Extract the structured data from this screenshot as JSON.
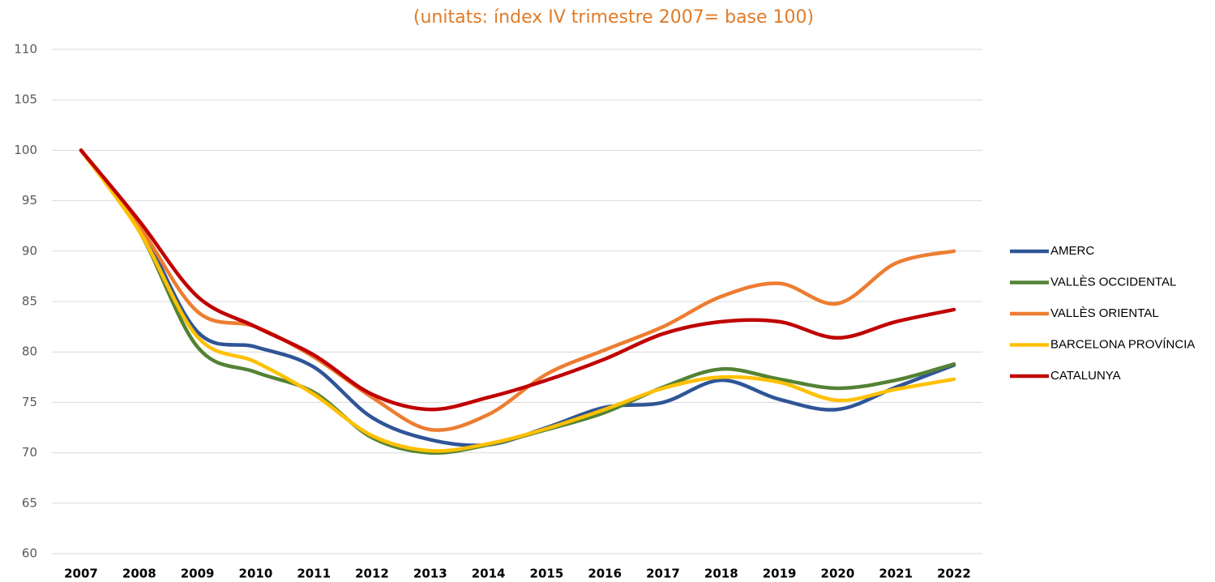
{
  "chart_data": {
    "type": "line",
    "title": "(unitats: índex IV trimestre 2007= base 100)",
    "categories": [
      "2007",
      "2008",
      "2009",
      "2010",
      "2011",
      "2012",
      "2013",
      "2014",
      "2015",
      "2016",
      "2017",
      "2018",
      "2019",
      "2020",
      "2021",
      "2022"
    ],
    "series": [
      {
        "name": "AMERC",
        "color": "#2f5597",
        "values": [
          100,
          92.5,
          82,
          80.5,
          78.5,
          73.5,
          71.3,
          70.8,
          72.5,
          74.5,
          75,
          77.2,
          75.3,
          74.3,
          76.5,
          78.7
        ]
      },
      {
        "name": "VALLÈS OCCIDENTAL",
        "color": "#548235",
        "values": [
          100,
          92,
          80.5,
          78,
          76,
          71.5,
          70,
          70.8,
          72.3,
          74,
          76.5,
          78.3,
          77.3,
          76.4,
          77.2,
          78.8
        ]
      },
      {
        "name": "VALLÈS ORIENTAL",
        "color": "#ed7d31",
        "values": [
          100,
          92.5,
          84,
          82.5,
          79.5,
          75.5,
          72.3,
          73.8,
          77.8,
          80.2,
          82.5,
          85.5,
          86.8,
          84.8,
          88.8,
          90
        ]
      },
      {
        "name": "BARCELONA PROVÍNCIA",
        "color": "#ffc000",
        "values": [
          100,
          92,
          81.5,
          79,
          75.8,
          71.7,
          70.2,
          70.9,
          72.4,
          74.3,
          76.4,
          77.5,
          77,
          75.2,
          76.3,
          77.3
        ]
      },
      {
        "name": "CATALUNYA",
        "color": "#c00000",
        "values": [
          100,
          93,
          85.5,
          82.5,
          79.7,
          75.8,
          74.3,
          75.5,
          77.2,
          79.3,
          81.8,
          83,
          83,
          81.4,
          83,
          84.2
        ]
      }
    ],
    "ylim": [
      60,
      110
    ],
    "yticks": [
      60,
      65,
      70,
      75,
      80,
      85,
      90,
      95,
      100,
      105,
      110
    ],
    "grid": true,
    "legend": "right",
    "title_color": "#e07b28"
  }
}
